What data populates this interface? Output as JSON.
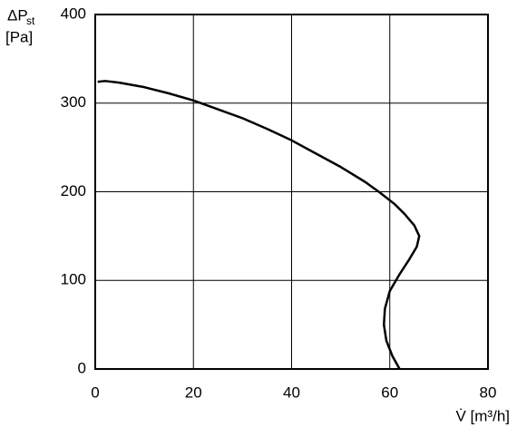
{
  "chart_data": {
    "type": "line",
    "ylabel_main": "ΔP",
    "ylabel_sub": "st",
    "ylabel_unit": "[Pa]",
    "xlabel": "V̇ [m³/h]",
    "x": [
      0.5,
      2,
      5,
      10,
      15,
      20,
      25,
      30,
      35,
      40,
      45,
      50,
      55,
      58,
      61,
      63,
      65,
      66,
      65.5,
      64,
      62,
      60,
      59,
      58.8,
      59.3,
      60.5,
      62
    ],
    "series": [
      {
        "color": "#000000",
        "values": [
          324,
          325,
          323,
          318,
          311,
          303,
          293,
          283,
          271,
          258,
          243,
          228,
          211,
          199,
          186,
          175,
          162,
          150,
          138,
          124,
          107,
          88,
          68,
          50,
          32,
          15,
          0
        ]
      }
    ],
    "xlim": [
      0,
      80
    ],
    "ylim": [
      0,
      400
    ],
    "xticks": [
      0,
      20,
      40,
      60,
      80
    ],
    "yticks": [
      0,
      100,
      200,
      300,
      400
    ],
    "grid": true
  }
}
